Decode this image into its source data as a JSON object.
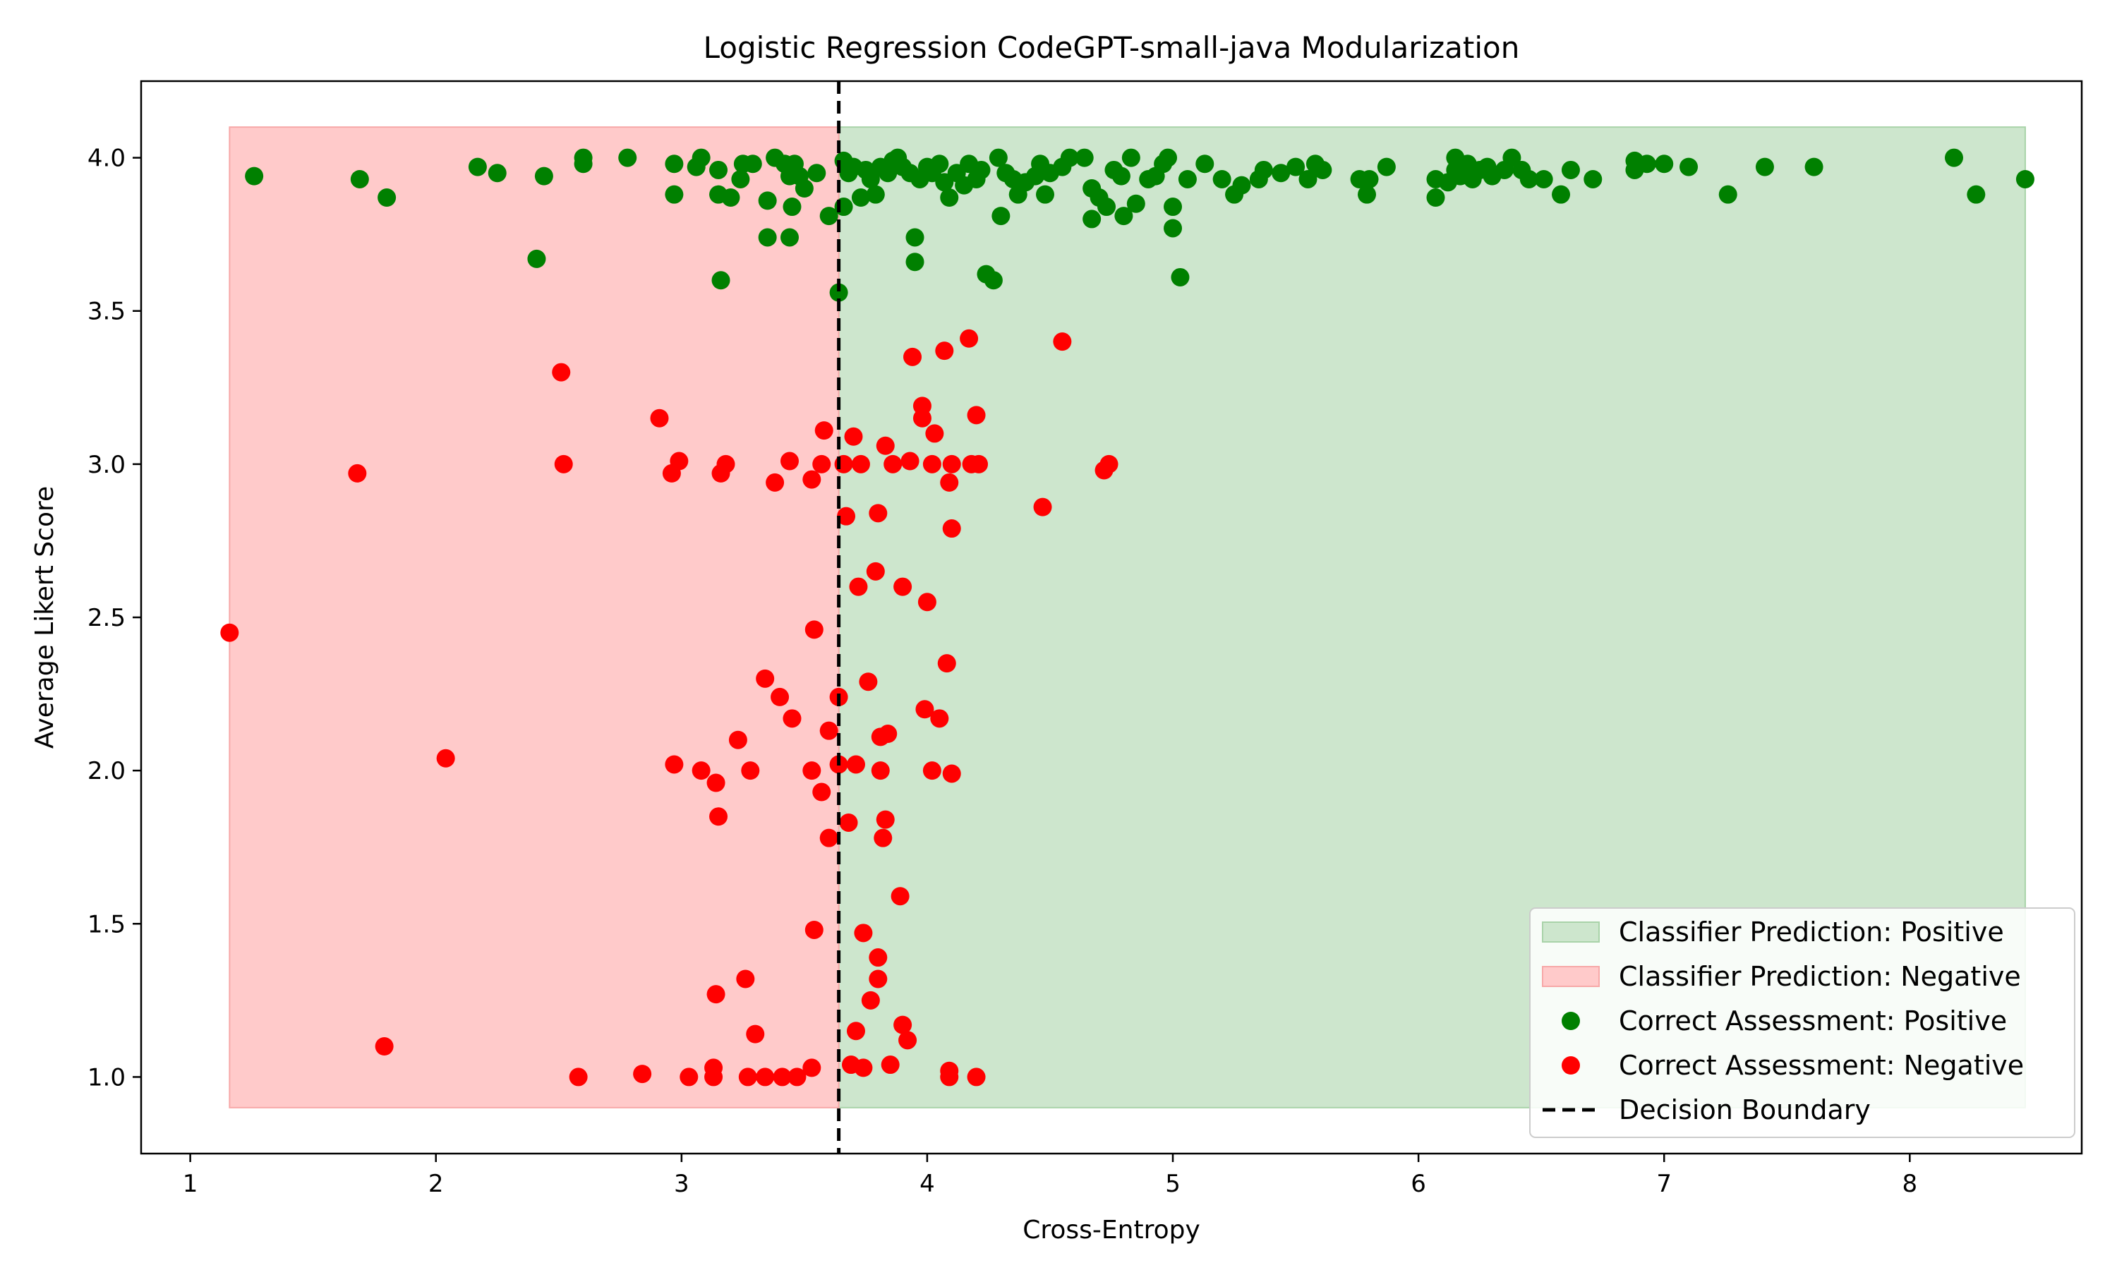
{
  "chart_data": {
    "type": "scatter",
    "title": "Logistic Regression CodeGPT-small-java Modularization",
    "xlabel": "Cross-Entropy",
    "ylabel": "Average Likert Score",
    "xlim": [
      0.8,
      8.7
    ],
    "ylim": [
      0.75,
      4.25
    ],
    "xticks": [
      1,
      2,
      3,
      4,
      5,
      6,
      7,
      8
    ],
    "yticks": [
      1.0,
      1.5,
      2.0,
      2.5,
      3.0,
      3.5,
      4.0
    ],
    "ytick_labels": [
      "1.0",
      "1.5",
      "2.0",
      "2.5",
      "3.0",
      "3.5",
      "4.0"
    ],
    "grid": false,
    "legend_position": "bottom-right",
    "decision_boundary": 3.64,
    "regions": [
      {
        "name": "Classifier Prediction: Positive",
        "color": "#cde6cd",
        "edge": "#a9d3a9",
        "x": [
          3.64,
          8.47
        ],
        "y": [
          0.9,
          4.1
        ]
      },
      {
        "name": "Classifier Prediction: Negative",
        "color": "#ffcaca",
        "edge": "#f7a8a8",
        "x": [
          1.16,
          3.64
        ],
        "y": [
          0.9,
          4.1
        ]
      }
    ],
    "series": [
      {
        "name": "Correct Assessment: Positive",
        "color": "#008000",
        "points": [
          [
            1.26,
            3.94
          ],
          [
            1.69,
            3.93
          ],
          [
            1.8,
            3.87
          ],
          [
            2.17,
            3.97
          ],
          [
            2.25,
            3.95
          ],
          [
            2.41,
            3.67
          ],
          [
            2.44,
            3.94
          ],
          [
            2.6,
            4.0
          ],
          [
            2.6,
            3.98
          ],
          [
            2.78,
            4.0
          ],
          [
            2.97,
            3.98
          ],
          [
            2.97,
            3.88
          ],
          [
            3.06,
            3.97
          ],
          [
            3.08,
            4.0
          ],
          [
            3.15,
            3.96
          ],
          [
            3.15,
            3.88
          ],
          [
            3.16,
            3.6
          ],
          [
            3.2,
            3.87
          ],
          [
            3.24,
            3.93
          ],
          [
            3.25,
            3.98
          ],
          [
            3.29,
            3.98
          ],
          [
            3.35,
            3.86
          ],
          [
            3.35,
            3.74
          ],
          [
            3.38,
            4.0
          ],
          [
            3.42,
            3.98
          ],
          [
            3.44,
            3.94
          ],
          [
            3.44,
            3.74
          ],
          [
            3.45,
            3.84
          ],
          [
            3.46,
            3.98
          ],
          [
            3.48,
            3.94
          ],
          [
            3.5,
            3.9
          ],
          [
            3.55,
            3.95
          ],
          [
            3.6,
            3.81
          ],
          [
            3.64,
            3.56
          ],
          [
            3.66,
            3.99
          ],
          [
            3.66,
            3.84
          ],
          [
            3.68,
            3.95
          ],
          [
            3.7,
            3.97
          ],
          [
            3.73,
            3.87
          ],
          [
            3.75,
            3.96
          ],
          [
            3.77,
            3.93
          ],
          [
            3.79,
            3.88
          ],
          [
            3.81,
            3.97
          ],
          [
            3.84,
            3.95
          ],
          [
            3.86,
            3.99
          ],
          [
            3.88,
            4.0
          ],
          [
            3.9,
            3.97
          ],
          [
            3.93,
            3.95
          ],
          [
            3.95,
            3.74
          ],
          [
            3.95,
            3.66
          ],
          [
            3.97,
            3.93
          ],
          [
            4.0,
            3.97
          ],
          [
            4.02,
            3.95
          ],
          [
            4.05,
            3.98
          ],
          [
            4.07,
            3.92
          ],
          [
            4.09,
            3.87
          ],
          [
            4.12,
            3.95
          ],
          [
            4.15,
            3.91
          ],
          [
            4.17,
            3.98
          ],
          [
            4.2,
            3.93
          ],
          [
            4.22,
            3.96
          ],
          [
            4.24,
            3.62
          ],
          [
            4.27,
            3.6
          ],
          [
            4.29,
            4.0
          ],
          [
            4.3,
            3.81
          ],
          [
            4.32,
            3.95
          ],
          [
            4.35,
            3.93
          ],
          [
            4.37,
            3.88
          ],
          [
            4.4,
            3.92
          ],
          [
            4.44,
            3.94
          ],
          [
            4.46,
            3.98
          ],
          [
            4.48,
            3.88
          ],
          [
            4.5,
            3.95
          ],
          [
            4.55,
            3.97
          ],
          [
            4.58,
            4.0
          ],
          [
            4.64,
            4.0
          ],
          [
            4.67,
            3.9
          ],
          [
            4.67,
            3.8
          ],
          [
            4.7,
            3.87
          ],
          [
            4.73,
            3.84
          ],
          [
            4.76,
            3.96
          ],
          [
            4.79,
            3.94
          ],
          [
            4.8,
            3.81
          ],
          [
            4.83,
            4.0
          ],
          [
            4.85,
            3.85
          ],
          [
            4.9,
            3.93
          ],
          [
            4.93,
            3.94
          ],
          [
            4.96,
            3.98
          ],
          [
            4.98,
            4.0
          ],
          [
            5.0,
            3.84
          ],
          [
            5.0,
            3.77
          ],
          [
            5.03,
            3.61
          ],
          [
            5.06,
            3.93
          ],
          [
            5.13,
            3.98
          ],
          [
            5.2,
            3.93
          ],
          [
            5.25,
            3.88
          ],
          [
            5.28,
            3.91
          ],
          [
            5.35,
            3.93
          ],
          [
            5.37,
            3.96
          ],
          [
            5.44,
            3.95
          ],
          [
            5.5,
            3.97
          ],
          [
            5.55,
            3.93
          ],
          [
            5.58,
            3.98
          ],
          [
            5.61,
            3.96
          ],
          [
            5.76,
            3.93
          ],
          [
            5.79,
            3.88
          ],
          [
            5.8,
            3.93
          ],
          [
            5.87,
            3.97
          ],
          [
            6.07,
            3.93
          ],
          [
            6.07,
            3.87
          ],
          [
            6.12,
            3.92
          ],
          [
            6.15,
            4.0
          ],
          [
            6.15,
            3.96
          ],
          [
            6.17,
            3.94
          ],
          [
            6.2,
            3.98
          ],
          [
            6.22,
            3.93
          ],
          [
            6.25,
            3.96
          ],
          [
            6.28,
            3.97
          ],
          [
            6.3,
            3.94
          ],
          [
            6.35,
            3.96
          ],
          [
            6.38,
            4.0
          ],
          [
            6.42,
            3.96
          ],
          [
            6.45,
            3.93
          ],
          [
            6.51,
            3.93
          ],
          [
            6.58,
            3.88
          ],
          [
            6.62,
            3.96
          ],
          [
            6.71,
            3.93
          ],
          [
            6.88,
            3.99
          ],
          [
            6.88,
            3.96
          ],
          [
            6.93,
            3.98
          ],
          [
            7.0,
            3.98
          ],
          [
            7.1,
            3.97
          ],
          [
            7.26,
            3.88
          ],
          [
            7.41,
            3.97
          ],
          [
            7.61,
            3.97
          ],
          [
            8.18,
            4.0
          ],
          [
            8.27,
            3.88
          ],
          [
            8.47,
            3.93
          ]
        ]
      },
      {
        "name": "Correct Assessment: Negative",
        "color": "#ff0000",
        "points": [
          [
            1.16,
            2.45
          ],
          [
            1.68,
            2.97
          ],
          [
            1.79,
            1.1
          ],
          [
            2.04,
            2.04
          ],
          [
            2.51,
            3.3
          ],
          [
            2.52,
            3.0
          ],
          [
            2.58,
            1.0
          ],
          [
            2.84,
            1.01
          ],
          [
            2.91,
            3.15
          ],
          [
            2.96,
            2.97
          ],
          [
            2.97,
            2.02
          ],
          [
            2.99,
            3.01
          ],
          [
            3.03,
            1.0
          ],
          [
            3.08,
            2.0
          ],
          [
            3.13,
            1.03
          ],
          [
            3.13,
            1.0
          ],
          [
            3.14,
            1.27
          ],
          [
            3.14,
            1.96
          ],
          [
            3.15,
            1.85
          ],
          [
            3.16,
            2.97
          ],
          [
            3.18,
            3.0
          ],
          [
            3.23,
            2.1
          ],
          [
            3.26,
            1.32
          ],
          [
            3.27,
            1.0
          ],
          [
            3.28,
            2.0
          ],
          [
            3.3,
            1.14
          ],
          [
            3.34,
            2.3
          ],
          [
            3.34,
            1.0
          ],
          [
            3.38,
            2.94
          ],
          [
            3.4,
            2.24
          ],
          [
            3.41,
            1.0
          ],
          [
            3.44,
            3.01
          ],
          [
            3.45,
            2.17
          ],
          [
            3.47,
            1.0
          ],
          [
            3.53,
            1.03
          ],
          [
            3.53,
            2.95
          ],
          [
            3.53,
            2.0
          ],
          [
            3.54,
            2.46
          ],
          [
            3.54,
            1.48
          ],
          [
            3.57,
            3.0
          ],
          [
            3.57,
            1.93
          ],
          [
            3.58,
            3.11
          ],
          [
            3.6,
            2.13
          ],
          [
            3.6,
            1.78
          ],
          [
            3.64,
            2.24
          ],
          [
            3.64,
            2.02
          ],
          [
            3.66,
            3.0
          ],
          [
            3.67,
            2.83
          ],
          [
            3.68,
            1.83
          ],
          [
            3.69,
            1.04
          ],
          [
            3.7,
            3.09
          ],
          [
            3.71,
            2.02
          ],
          [
            3.71,
            1.15
          ],
          [
            3.72,
            2.6
          ],
          [
            3.73,
            3.0
          ],
          [
            3.74,
            1.47
          ],
          [
            3.74,
            1.03
          ],
          [
            3.76,
            2.29
          ],
          [
            3.77,
            1.25
          ],
          [
            3.79,
            2.65
          ],
          [
            3.8,
            2.84
          ],
          [
            3.8,
            1.39
          ],
          [
            3.8,
            1.32
          ],
          [
            3.81,
            2.0
          ],
          [
            3.81,
            2.11
          ],
          [
            3.82,
            1.78
          ],
          [
            3.83,
            3.06
          ],
          [
            3.83,
            1.84
          ],
          [
            3.84,
            2.12
          ],
          [
            3.85,
            1.04
          ],
          [
            3.86,
            3.0
          ],
          [
            3.89,
            1.59
          ],
          [
            3.9,
            2.6
          ],
          [
            3.9,
            1.17
          ],
          [
            3.92,
            1.12
          ],
          [
            3.93,
            3.01
          ],
          [
            3.94,
            3.35
          ],
          [
            3.98,
            3.19
          ],
          [
            3.98,
            3.15
          ],
          [
            3.99,
            2.2
          ],
          [
            4.0,
            2.55
          ],
          [
            4.02,
            3.0
          ],
          [
            4.02,
            2.0
          ],
          [
            4.03,
            3.1
          ],
          [
            4.05,
            2.17
          ],
          [
            4.07,
            3.37
          ],
          [
            4.08,
            2.35
          ],
          [
            4.09,
            2.94
          ],
          [
            4.09,
            1.02
          ],
          [
            4.09,
            1.0
          ],
          [
            4.1,
            3.0
          ],
          [
            4.1,
            2.79
          ],
          [
            4.1,
            1.99
          ],
          [
            4.17,
            3.41
          ],
          [
            4.18,
            3.0
          ],
          [
            4.2,
            3.16
          ],
          [
            4.2,
            1.0
          ],
          [
            4.21,
            3.0
          ],
          [
            4.47,
            2.86
          ],
          [
            4.55,
            3.4
          ],
          [
            4.72,
            2.98
          ],
          [
            4.74,
            3.0
          ]
        ]
      }
    ],
    "legend": {
      "entries": [
        {
          "label": "Classifier Prediction: Positive",
          "kind": "patch",
          "color": "#cde6cd",
          "edge": "#a9d3a9"
        },
        {
          "label": "Classifier Prediction: Negative",
          "kind": "patch",
          "color": "#ffcaca",
          "edge": "#f7a8a8"
        },
        {
          "label": "Correct Assessment: Positive",
          "kind": "dot",
          "color": "#008000"
        },
        {
          "label": "Correct Assessment: Negative",
          "kind": "dot",
          "color": "#ff0000"
        },
        {
          "label": "Decision Boundary",
          "kind": "dash",
          "color": "#000000"
        }
      ]
    }
  }
}
